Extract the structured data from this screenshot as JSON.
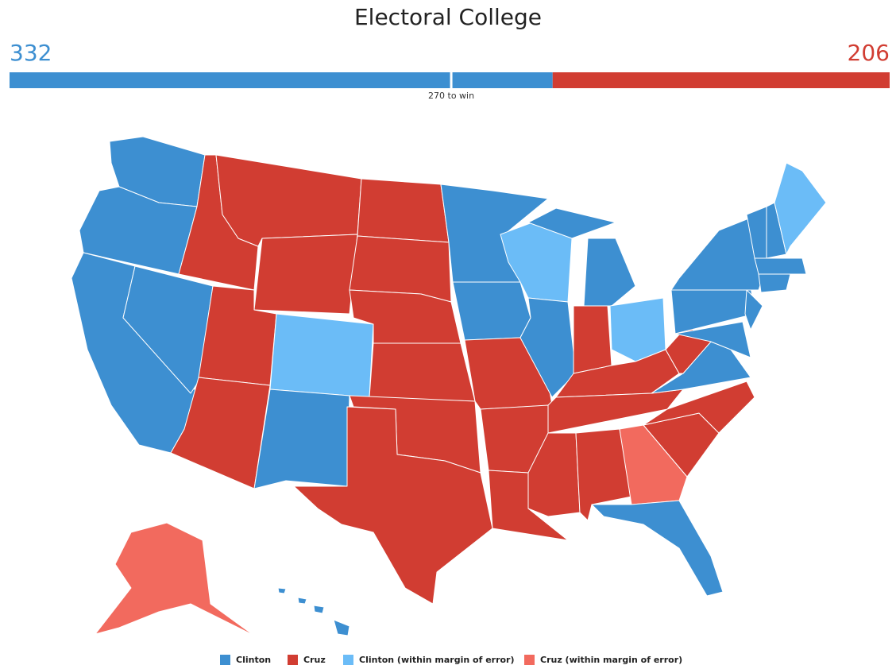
{
  "title": "Electoral College",
  "tally": {
    "values": [
      332,
      206
    ],
    "colors": [
      "#3d8fd1",
      "#d13d32"
    ],
    "threshold": {
      "value": 270,
      "label": "270 to win"
    }
  },
  "legend": [
    {
      "name": "Clinton",
      "color": "#3d8fd1"
    },
    {
      "name": "Cruz",
      "color": "#d13d32"
    },
    {
      "name": "Clinton (within margin of error)",
      "color": "#6bbcf7"
    },
    {
      "name": "Cruz (within margin of error)",
      "color": "#f26a5e"
    }
  ]
}
